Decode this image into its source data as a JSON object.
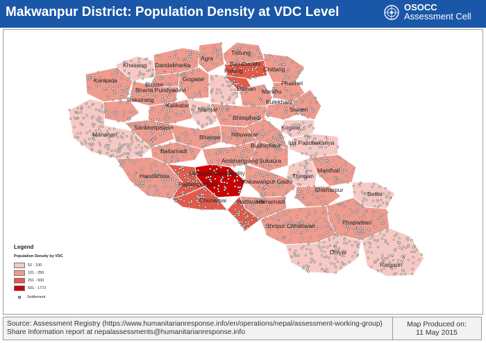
{
  "title": "Makwanpur District: Population Density at VDC Level",
  "organization": {
    "line1": "OSOCC",
    "line2": "Assessment Cell",
    "logo_icon": "un-emblem-icon"
  },
  "legend": {
    "title": "Legend",
    "subtitle": "Population Density by VDC",
    "classes": [
      {
        "label": "52 - 100",
        "color": "#f7c9c4"
      },
      {
        "label": "101 - 250",
        "color": "#ef9b8e"
      },
      {
        "label": "251 - 500",
        "color": "#e45a49"
      },
      {
        "label": "501 - 1772",
        "color": "#cc0000"
      }
    ],
    "settlement_label": "Settlement"
  },
  "vdcs": [
    {
      "name": "Tistung",
      "cls": 1
    },
    {
      "name": "Agra",
      "cls": 1
    },
    {
      "name": "Bajrabarahi",
      "cls": 2
    },
    {
      "name": "Palung",
      "cls": 2
    },
    {
      "name": "Khairang",
      "cls": 0
    },
    {
      "name": "Dandakharka",
      "cls": 1
    },
    {
      "name": "Chitlang",
      "cls": 1
    },
    {
      "name": "Kankada",
      "cls": 1
    },
    {
      "name": "Gogane",
      "cls": 1
    },
    {
      "name": "Phakhel",
      "cls": 1
    },
    {
      "name": "Bhaise",
      "cls": 1
    },
    {
      "name": "Bharta Pundyadevi",
      "cls": 1
    },
    {
      "name": "Daman",
      "cls": 0
    },
    {
      "name": "Markhu",
      "cls": 1
    },
    {
      "name": "Raksirang",
      "cls": 1
    },
    {
      "name": "Kalikatar",
      "cls": 1
    },
    {
      "name": "Kulekhani",
      "cls": 1
    },
    {
      "name": "Namtar",
      "cls": 0
    },
    {
      "name": "Sisneri",
      "cls": 1
    },
    {
      "name": "Bhimphedi",
      "cls": 1
    },
    {
      "name": "Manahari",
      "cls": 0
    },
    {
      "name": "Sarikhetpalase",
      "cls": 1
    },
    {
      "name": "Kogate",
      "cls": 0
    },
    {
      "name": "Nibuwatar",
      "cls": 1
    },
    {
      "name": "Bhainse",
      "cls": 1
    },
    {
      "name": "Ipa Panchakanya",
      "cls": 0
    },
    {
      "name": "Budhichaur",
      "cls": 1
    },
    {
      "name": "Basamadi",
      "cls": 1
    },
    {
      "name": "Sukaura",
      "cls": 1
    },
    {
      "name": "Ambhanjyang",
      "cls": 1
    },
    {
      "name": "Handikhola",
      "cls": 1
    },
    {
      "name": "Hetauda Municipality",
      "cls": 3
    },
    {
      "name": "Manthali",
      "cls": 1
    },
    {
      "name": "Thingan",
      "cls": 0
    },
    {
      "name": "Padampokhari",
      "cls": 2
    },
    {
      "name": "Makawanpur Gadhi",
      "cls": 1
    },
    {
      "name": "Shikharpur",
      "cls": 1
    },
    {
      "name": "Betini",
      "cls": 0
    },
    {
      "name": "Churiamai",
      "cls": 2
    },
    {
      "name": "Hattisunde",
      "cls": 2
    },
    {
      "name": "Hamamadi",
      "cls": 1
    },
    {
      "name": "Phaparbari",
      "cls": 1
    },
    {
      "name": "Shripur Chhatiwan",
      "cls": 1
    },
    {
      "name": "Dhiyal",
      "cls": 0
    },
    {
      "name": "Raigaun",
      "cls": 0
    }
  ],
  "footer": {
    "source_line1": "Source: Assessment Registry (https://www.humanitarianresponse.info/en/operations/nepal/assessment-working-group)",
    "source_line2": "Share Information report at nepalassessments@humanitarianresponse.info",
    "produced_line1": "Map Produced on:",
    "produced_line2": "11 May 2015"
  }
}
